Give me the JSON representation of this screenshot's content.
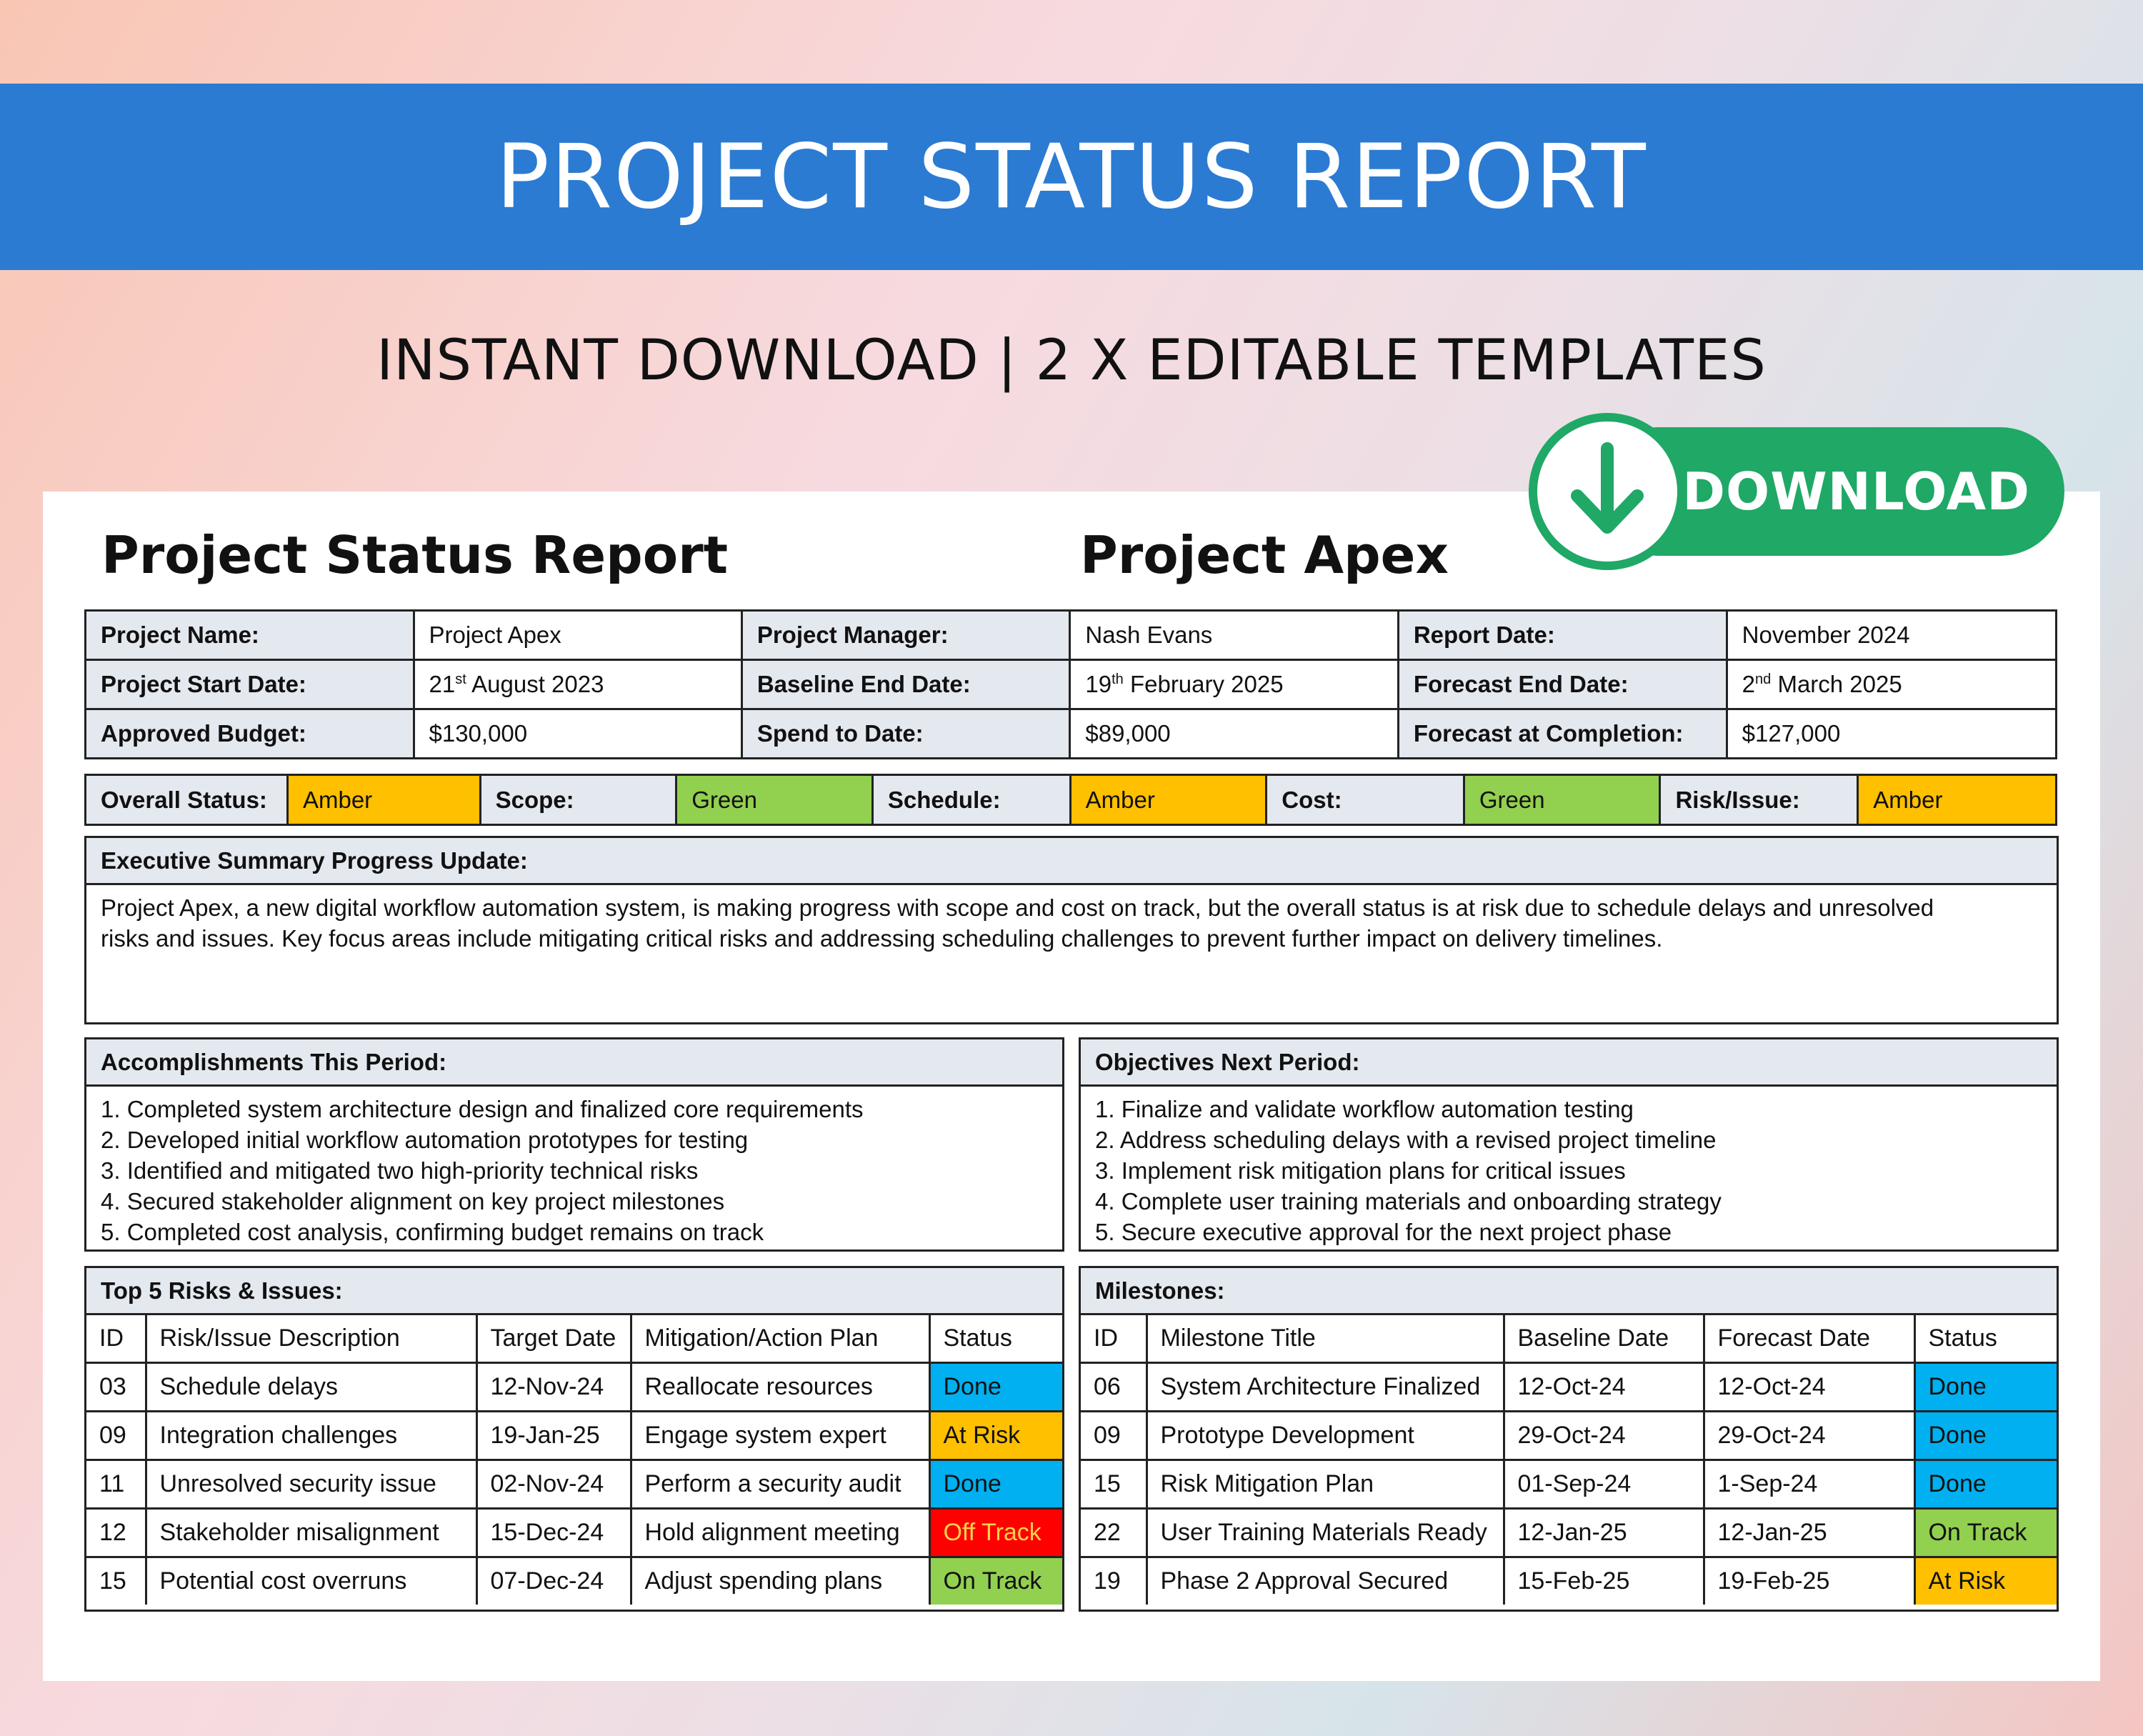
{
  "banner": {
    "title": "PROJECT STATUS REPORT"
  },
  "subtitle": "INSTANT DOWNLOAD | 2 X EDITABLE TEMPLATES",
  "download": {
    "label": "DOWNLOAD",
    "icon": "arrow-down-icon",
    "color": "#1fa866"
  },
  "doc": {
    "title": "Project Status Report",
    "project_heading": "Project Apex"
  },
  "info": {
    "project_name_label": "Project Name:",
    "project_name": "Project Apex",
    "manager_label": "Project Manager:",
    "manager": "Nash Evans",
    "report_date_label": "Report Date:",
    "report_date": "November 2024",
    "start_label": "Project Start Date:",
    "start_day": "21",
    "start_suffix": "st",
    "start_rest": " August 2023",
    "baseline_end_label": "Baseline End Date:",
    "baseline_day": "19",
    "baseline_suffix": "th",
    "baseline_rest": " February 2025",
    "forecast_end_label": "Forecast End Date:",
    "forecast_day": "2",
    "forecast_suffix": "nd",
    "forecast_rest": " March 2025",
    "budget_label": "Approved Budget:",
    "budget": "$130,000",
    "spend_label": "Spend to Date:",
    "spend": "$89,000",
    "fac_label": "Forecast at Completion:",
    "fac": "$127,000"
  },
  "status": {
    "overall_label": "Overall Status:",
    "overall": "Amber",
    "scope_label": "Scope:",
    "scope": "Green",
    "schedule_label": "Schedule:",
    "schedule": "Amber",
    "cost_label": "Cost:",
    "cost": "Green",
    "risk_label": "Risk/Issue:",
    "risk": "Amber",
    "colors": {
      "amber": "#ffc000",
      "green": "#92d050",
      "blue": "#00b0f0",
      "red": "#ff0000"
    }
  },
  "executive": {
    "heading": "Executive Summary Progress Update:",
    "line1": "Project Apex, a new digital workflow automation system, is making progress with scope and cost on track, but the overall status is at risk due to schedule delays and unresolved",
    "line2": "risks and issues. Key focus areas include mitigating critical risks and addressing scheduling challenges to prevent further impact on delivery timelines."
  },
  "accomplishments": {
    "heading": "Accomplishments This Period:",
    "items": [
      "1. Completed system architecture design and finalized core requirements",
      "2. Developed initial workflow automation prototypes for testing",
      "3. Identified and mitigated two high-priority technical risks",
      "4. Secured stakeholder alignment on key project milestones",
      "5. Completed cost analysis, confirming budget remains on track"
    ]
  },
  "objectives": {
    "heading": "Objectives Next Period:",
    "items": [
      "1. Finalize and validate workflow automation testing",
      "2. Address scheduling delays with a revised project timeline",
      "3. Implement risk mitigation plans for critical issues",
      "4. Complete user training materials and onboarding strategy",
      "5. Secure executive approval for the next project phase"
    ]
  },
  "risks": {
    "heading": "Top 5 Risks & Issues:",
    "columns": [
      "ID",
      "Risk/Issue Description",
      "Target Date",
      "Mitigation/Action Plan",
      "Status"
    ],
    "rows": [
      [
        "03",
        "Schedule delays",
        "12-Nov-24",
        "Reallocate resources",
        "Done"
      ],
      [
        "09",
        "Integration challenges",
        "19-Jan-25",
        "Engage system expert",
        "At Risk"
      ],
      [
        "11",
        "Unresolved security issue",
        "02-Nov-24",
        "Perform a security audit",
        "Done"
      ],
      [
        "12",
        "Stakeholder misalignment",
        "15-Dec-24",
        "Hold alignment meeting",
        "Off Track"
      ],
      [
        "15",
        "Potential cost overruns",
        "07-Dec-24",
        "Adjust spending plans",
        "On Track"
      ]
    ]
  },
  "milestones": {
    "heading": "Milestones:",
    "columns": [
      "ID",
      "Milestone Title",
      "Baseline Date",
      "Forecast Date",
      "Status"
    ],
    "rows": [
      [
        "06",
        "System Architecture Finalized",
        "12-Oct-24",
        "12-Oct-24",
        "Done"
      ],
      [
        "09",
        "Prototype Development",
        "29-Oct-24",
        "29-Oct-24",
        "Done"
      ],
      [
        "15",
        "Risk Mitigation Plan",
        "01-Sep-24",
        "1-Sep-24",
        "Done"
      ],
      [
        "22",
        "User Training Materials Ready",
        "12-Jan-25",
        "12-Jan-25",
        "On Track"
      ],
      [
        "19",
        "Phase 2 Approval Secured",
        "15-Feb-25",
        "19-Feb-25",
        "At Risk"
      ]
    ]
  }
}
